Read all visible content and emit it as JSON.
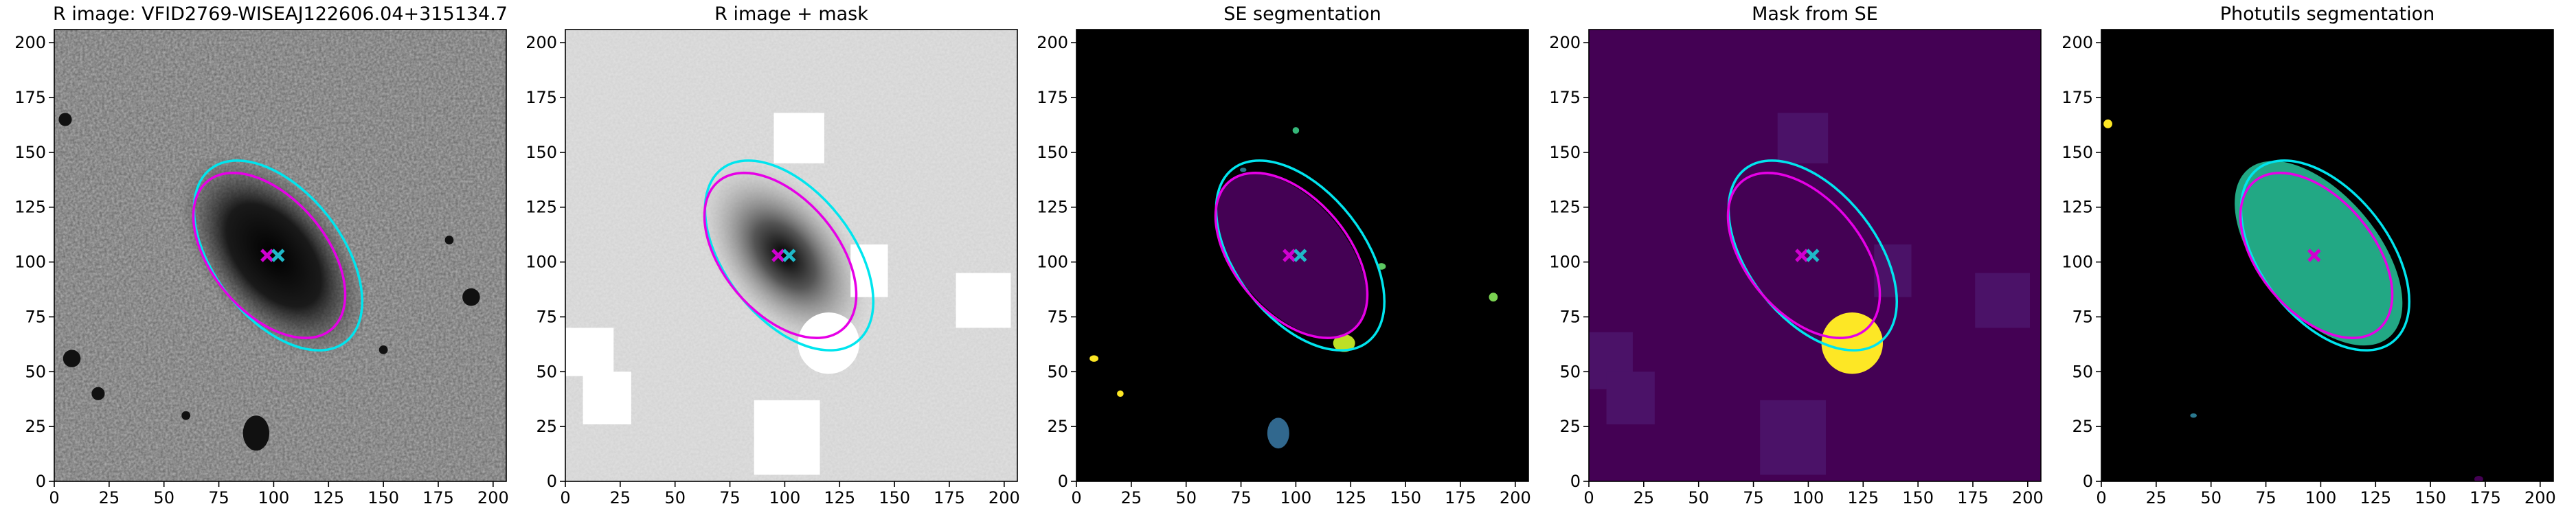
{
  "chart_data": [
    {
      "type": "image",
      "title": "R image: VFID2769-WISEAJ122606.04+315134.7",
      "xlim": [
        0,
        206
      ],
      "ylim": [
        0,
        206
      ],
      "xticks": [
        0,
        25,
        50,
        75,
        100,
        125,
        150,
        175,
        200
      ],
      "yticks": [
        0,
        25,
        50,
        75,
        100,
        125,
        150,
        175,
        200
      ]
    },
    {
      "type": "image",
      "title": "R image + mask",
      "xlim": [
        0,
        206
      ],
      "ylim": [
        0,
        206
      ],
      "xticks": [
        0,
        25,
        50,
        75,
        100,
        125,
        150,
        175,
        200
      ],
      "yticks": [
        0,
        25,
        50,
        75,
        100,
        125,
        150,
        175,
        200
      ]
    },
    {
      "type": "image",
      "title": "SE segmentation",
      "xlim": [
        0,
        206
      ],
      "ylim": [
        0,
        206
      ],
      "xticks": [
        0,
        25,
        50,
        75,
        100,
        125,
        150,
        175,
        200
      ],
      "yticks": [
        0,
        25,
        50,
        75,
        100,
        125,
        150,
        175,
        200
      ]
    },
    {
      "type": "image",
      "title": "Mask from SE",
      "xlim": [
        0,
        206
      ],
      "ylim": [
        0,
        206
      ],
      "xticks": [
        0,
        25,
        50,
        75,
        100,
        125,
        150,
        175,
        200
      ],
      "yticks": [
        0,
        25,
        50,
        75,
        100,
        125,
        150,
        175,
        200
      ]
    },
    {
      "type": "image",
      "title": "Photutils segmentation",
      "xlim": [
        0,
        206
      ],
      "ylim": [
        0,
        206
      ],
      "xticks": [
        0,
        25,
        50,
        75,
        100,
        125,
        150,
        175,
        200
      ],
      "yticks": [
        0,
        25,
        50,
        75,
        100,
        125,
        150,
        175,
        200
      ]
    }
  ]
}
